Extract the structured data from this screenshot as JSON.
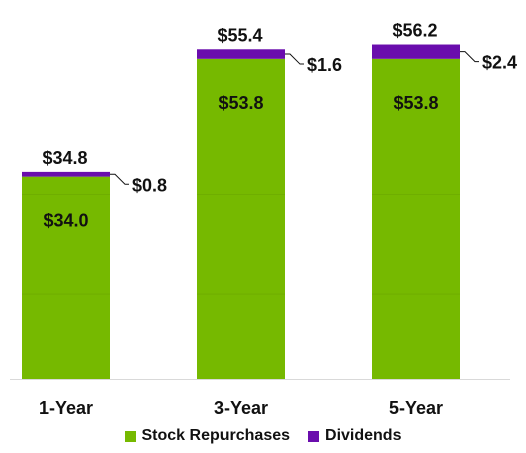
{
  "chart_data": {
    "type": "bar",
    "stacked": true,
    "categories": [
      "1-Year",
      "3-Year",
      "5-Year"
    ],
    "series": [
      {
        "name": "Stock Repurchases",
        "values": [
          34.0,
          53.8,
          53.8
        ],
        "labels": [
          "$34.0",
          "$53.8",
          "$53.8"
        ],
        "color": "#76b900"
      },
      {
        "name": "Dividends",
        "values": [
          0.8,
          1.6,
          2.4
        ],
        "labels": [
          "$0.8",
          "$1.6",
          "$2.4"
        ],
        "color": "#6a0dad"
      }
    ],
    "totals": [
      34.8,
      55.4,
      56.2
    ],
    "total_labels": [
      "$34.8",
      "$55.4",
      "$56.2"
    ],
    "ylim": [
      0,
      62
    ],
    "legend_position": "bottom"
  }
}
